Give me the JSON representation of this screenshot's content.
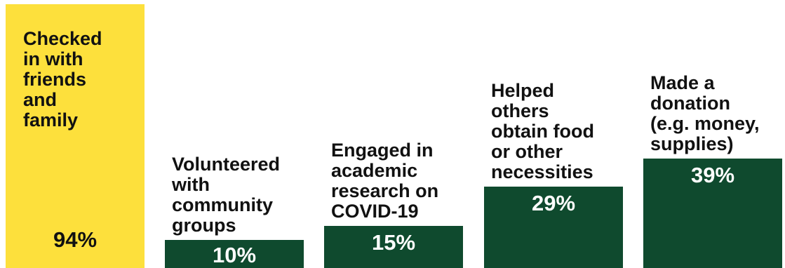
{
  "chart_data": {
    "type": "bar",
    "categories": [
      "Checked\nin with\nfriends\nand\nfamily",
      "Volunteered\nwith\ncommunity\ngroups",
      "Engaged in\nacademic\nresearch on\nCOVID-19",
      "Helped\nothers\nobtain food\nor other\nnecessities",
      "Made a\ndonation\n(e.g. money,\nsupplies)"
    ],
    "values": [
      94,
      10,
      15,
      29,
      39
    ],
    "value_labels": [
      "94%",
      "10%",
      "15%",
      "29%",
      "39%"
    ],
    "ylim": [
      0,
      100
    ],
    "colors": [
      "#fde03c",
      "#0f4a2e",
      "#0f4a2e",
      "#0f4a2e",
      "#0f4a2e"
    ],
    "value_label_colors": [
      "#111111",
      "#ffffff",
      "#ffffff",
      "#ffffff",
      "#ffffff"
    ],
    "category_label_position": [
      "inside",
      "above",
      "above",
      "above",
      "above"
    ]
  }
}
